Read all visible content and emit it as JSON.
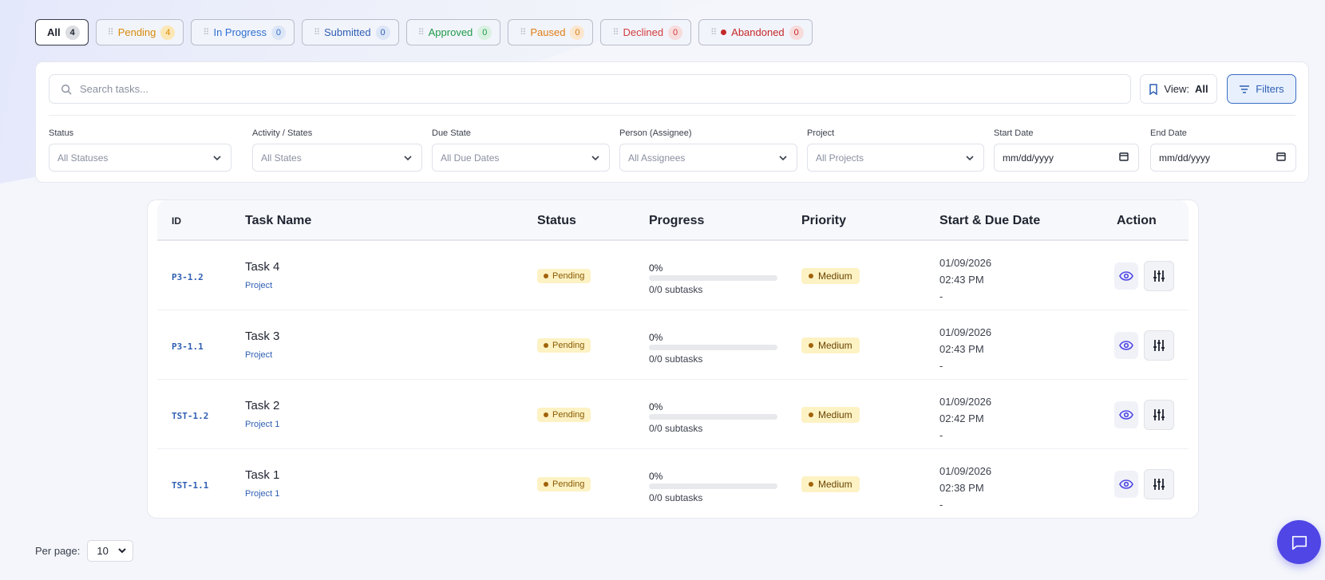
{
  "tabs": [
    {
      "label": "All",
      "count": "4",
      "color": "#1f2430",
      "count_bg": "#dcdde2",
      "active": true
    },
    {
      "label": "Pending",
      "count": "4",
      "color": "#d98a0b",
      "count_bg": "#fbe7b5",
      "active": false
    },
    {
      "label": "In Progress",
      "count": "0",
      "color": "#2f6fd0",
      "count_bg": "#dce6f6",
      "active": false
    },
    {
      "label": "Submitted",
      "count": "0",
      "color": "#2f5fb3",
      "count_bg": "#dce6f6",
      "active": false
    },
    {
      "label": "Approved",
      "count": "0",
      "color": "#1f9a4a",
      "count_bg": "#d9f1e1",
      "active": false
    },
    {
      "label": "Paused",
      "count": "0",
      "color": "#e07e14",
      "count_bg": "#fbe6cf",
      "active": false
    },
    {
      "label": "Declined",
      "count": "0",
      "color": "#d23d3d",
      "count_bg": "#f7dcdc",
      "active": false
    },
    {
      "label": "Abandoned",
      "count": "0",
      "color": "#c42a2a",
      "count_bg": "#f7dcdc",
      "active": false,
      "dot": "#c42a2a"
    }
  ],
  "search": {
    "placeholder": "Search tasks..."
  },
  "view_button": {
    "prefix": "View:",
    "value": "All"
  },
  "filters_button": {
    "label": "Filters"
  },
  "filters": {
    "status": {
      "label": "Status",
      "value": "All Statuses"
    },
    "activity": {
      "label": "Activity / States",
      "value": "All States"
    },
    "due": {
      "label": "Due State",
      "value": "All Due Dates"
    },
    "person": {
      "label": "Person (Assignee)",
      "value": "All Assignees"
    },
    "project": {
      "label": "Project",
      "value": "All Projects"
    },
    "start": {
      "label": "Start Date",
      "value": "mm/dd/yyyy"
    },
    "end": {
      "label": "End Date",
      "value": "mm/dd/yyyy"
    }
  },
  "table": {
    "headers": {
      "id": "ID",
      "name": "Task Name",
      "status": "Status",
      "progress": "Progress",
      "priority": "Priority",
      "dates": "Start & Due Date",
      "action": "Action"
    },
    "rows": [
      {
        "id": "P3-1.2",
        "name": "Task 4",
        "project": "Project",
        "status": "Pending",
        "progress": "0%",
        "progress_value": 0,
        "subtasks": "0/0 subtasks",
        "priority": "Medium",
        "start_date": "01/09/2026",
        "start_time": "02:43 PM",
        "due": "-"
      },
      {
        "id": "P3-1.1",
        "name": "Task 3",
        "project": "Project",
        "status": "Pending",
        "progress": "0%",
        "progress_value": 0,
        "subtasks": "0/0 subtasks",
        "priority": "Medium",
        "start_date": "01/09/2026",
        "start_time": "02:43 PM",
        "due": "-"
      },
      {
        "id": "TST-1.2",
        "name": "Task 2",
        "project": "Project 1",
        "status": "Pending",
        "progress": "0%",
        "progress_value": 0,
        "subtasks": "0/0 subtasks",
        "priority": "Medium",
        "start_date": "01/09/2026",
        "start_time": "02:42 PM",
        "due": "-"
      },
      {
        "id": "TST-1.1",
        "name": "Task 1",
        "project": "Project 1",
        "status": "Pending",
        "progress": "0%",
        "progress_value": 0,
        "subtasks": "0/0 subtasks",
        "priority": "Medium",
        "start_date": "01/09/2026",
        "start_time": "02:38 PM",
        "due": "-"
      }
    ]
  },
  "pagination": {
    "label": "Per page:",
    "value": "10"
  },
  "icons": {
    "search": "search-icon",
    "bookmark": "bookmark-icon",
    "filter": "filter-icon",
    "chevron": "chevron-down-icon",
    "calendar": "calendar-icon",
    "eye": "eye-icon",
    "adjust": "sliders-icon",
    "chat": "chat-icon"
  },
  "colors": {
    "accent": "#4f46e5",
    "link": "#2f5fb3",
    "pending_bg": "#fdf2c4"
  }
}
